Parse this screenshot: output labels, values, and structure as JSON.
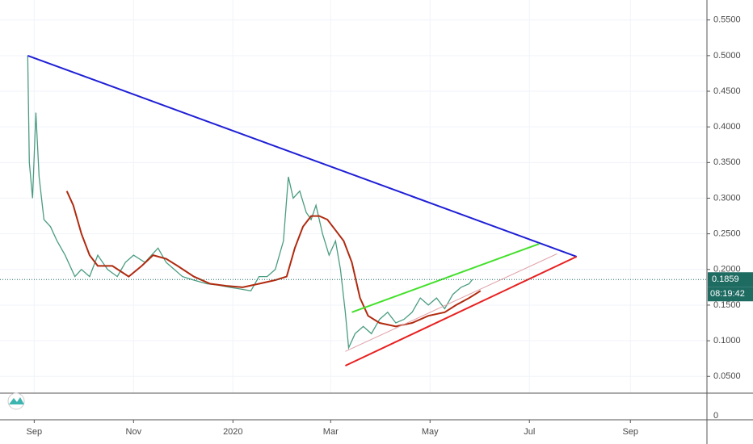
{
  "chart_data": {
    "type": "line",
    "xlim": [
      -21,
      413
    ],
    "xticks": [
      {
        "value": 0,
        "label": "Sep"
      },
      {
        "value": 61,
        "label": "Nov"
      },
      {
        "value": 122,
        "label": "2020"
      },
      {
        "value": 182,
        "label": "Mar"
      },
      {
        "value": 243,
        "label": "May"
      },
      {
        "value": 304,
        "label": "Jul"
      },
      {
        "value": 366,
        "label": "Sep"
      }
    ],
    "ylim": [
      0.0265,
      0.578
    ],
    "yticks": [
      {
        "value": 0.05,
        "label": "0.0500"
      },
      {
        "value": 0.1,
        "label": "0.1000"
      },
      {
        "value": 0.15,
        "label": "0.1500"
      },
      {
        "value": 0.2,
        "label": "0.2000"
      },
      {
        "value": 0.25,
        "label": "0.2500"
      },
      {
        "value": 0.3,
        "label": "0.3000"
      },
      {
        "value": 0.35,
        "label": "0.3500"
      },
      {
        "value": 0.4,
        "label": "0.4000"
      },
      {
        "value": 0.45,
        "label": "0.4500"
      },
      {
        "value": 0.5,
        "label": "0.5000"
      },
      {
        "value": 0.55,
        "label": "0.5500"
      }
    ],
    "volume_yticks": [
      0
    ],
    "grid": true,
    "series": [
      {
        "color": "#4a9c80",
        "x": [
          -4,
          -3,
          -1,
          1,
          3,
          6,
          10,
          14,
          19,
          25,
          29,
          34,
          39,
          45,
          51,
          56,
          61,
          68,
          76,
          81,
          86,
          91,
          98,
          106,
          113,
          120,
          128,
          133,
          138,
          143,
          148,
          153,
          156,
          159,
          163,
          167,
          170,
          173,
          177,
          181,
          185,
          188,
          191,
          193,
          197,
          202,
          207,
          212,
          217,
          222,
          227,
          232,
          237,
          242,
          247,
          252,
          257,
          262,
          267,
          269
        ],
        "values": [
          0.5,
          0.35,
          0.3,
          0.42,
          0.33,
          0.27,
          0.26,
          0.24,
          0.22,
          0.19,
          0.2,
          0.19,
          0.22,
          0.2,
          0.19,
          0.21,
          0.22,
          0.21,
          0.23,
          0.21,
          0.2,
          0.19,
          0.185,
          0.18,
          0.178,
          0.175,
          0.172,
          0.17,
          0.19,
          0.19,
          0.2,
          0.24,
          0.33,
          0.3,
          0.31,
          0.28,
          0.27,
          0.29,
          0.25,
          0.22,
          0.24,
          0.2,
          0.14,
          0.09,
          0.11,
          0.12,
          0.11,
          0.13,
          0.14,
          0.125,
          0.13,
          0.14,
          0.16,
          0.15,
          0.16,
          0.145,
          0.165,
          0.175,
          0.18,
          0.186
        ]
      },
      {
        "color": "#b02a0f",
        "x": [
          20,
          24,
          29,
          34,
          39,
          48,
          58,
          66,
          73,
          81,
          88,
          98,
          108,
          118,
          128,
          138,
          148,
          155,
          160,
          165,
          170,
          175,
          180,
          185,
          190,
          195,
          200,
          205,
          212,
          222,
          232,
          242,
          252,
          259,
          267,
          274
        ],
        "values": [
          0.31,
          0.29,
          0.25,
          0.22,
          0.205,
          0.205,
          0.19,
          0.205,
          0.22,
          0.215,
          0.205,
          0.19,
          0.18,
          0.177,
          0.175,
          0.18,
          0.185,
          0.19,
          0.23,
          0.26,
          0.275,
          0.275,
          0.27,
          0.255,
          0.24,
          0.21,
          0.16,
          0.135,
          0.125,
          0.12,
          0.125,
          0.135,
          0.14,
          0.15,
          0.16,
          0.17
        ]
      }
    ],
    "trendlines": [
      {
        "color": "#1f1fd6",
        "x": [
          -4,
          333
        ],
        "values": [
          0.5,
          0.218
        ]
      },
      {
        "color": "#e82020",
        "x": [
          191,
          333
        ],
        "values": [
          0.065,
          0.218
        ]
      },
      {
        "color": "#44e02c",
        "x": [
          195,
          310
        ],
        "values": [
          0.14,
          0.236
        ]
      },
      {
        "color": "#e0a0a8",
        "x": [
          191,
          321
        ],
        "values": [
          0.085,
          0.222
        ]
      }
    ],
    "last_price": 0.1859,
    "countdown": "08:19:42"
  }
}
